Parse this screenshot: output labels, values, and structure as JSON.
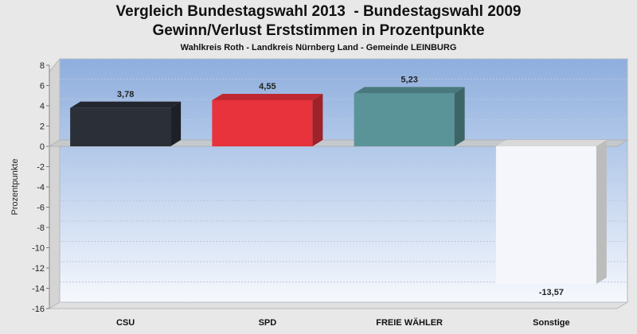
{
  "chart_data": {
    "type": "bar",
    "title_line1": "Vergleich Bundestagswahl 2013  - Bundestagswahl 2009",
    "title_line2": "Gewinn/Verlust Erststimmen in Prozentpunkte",
    "subtitle": "Wahlkreis Roth - Landkreis Nürnberg Land - Gemeinde LEINBURG",
    "ylabel": "Prozentpunkte",
    "xlabel": "",
    "categories": [
      "CSU",
      "SPD",
      "FREIE WÄHLER",
      "Sonstige"
    ],
    "values": [
      3.78,
      4.55,
      5.23,
      -13.57
    ],
    "value_labels": [
      "3,78",
      "4,55",
      "5,23",
      "-13,57"
    ],
    "colors": [
      "#2b2f38",
      "#e8323c",
      "#5a9499",
      "#f4f6fb"
    ],
    "ylim": [
      -16,
      8
    ],
    "yticks": [
      8,
      6,
      4,
      2,
      0,
      -2,
      -4,
      -6,
      -8,
      -10,
      -12,
      -14,
      -16
    ],
    "grid": true,
    "legend": "none"
  }
}
